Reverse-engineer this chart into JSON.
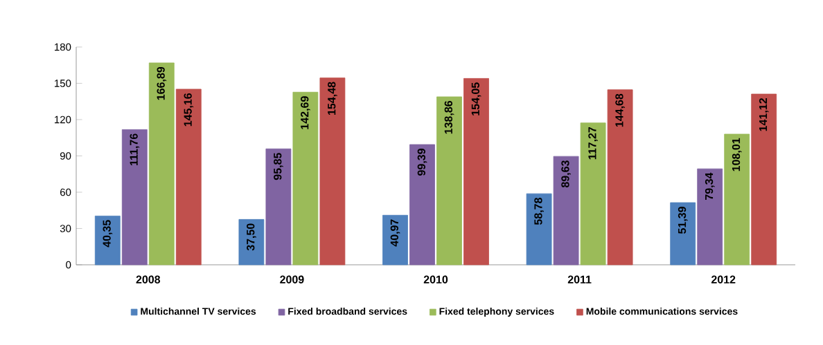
{
  "chart_data": {
    "type": "bar",
    "categories": [
      "2008",
      "2009",
      "2010",
      "2011",
      "2012"
    ],
    "series": [
      {
        "name": "Multichannel TV services",
        "color": "#4f81bd",
        "values": [
          40.35,
          37.5,
          40.97,
          58.78,
          51.39
        ],
        "value_labels": [
          "40,35",
          "37,50",
          "40,97",
          "58,78",
          "51,39"
        ]
      },
      {
        "name": "Fixed broadband services",
        "color": "#8064a2",
        "values": [
          111.76,
          95.85,
          99.39,
          89.63,
          79.34
        ],
        "value_labels": [
          "111,76",
          "95,85",
          "99,39",
          "89,63",
          "79,34"
        ]
      },
      {
        "name": "Fixed telephony services",
        "color": "#9bbb59",
        "values": [
          166.89,
          142.69,
          138.86,
          117.27,
          108.01
        ],
        "value_labels": [
          "166,89",
          "142,69",
          "138,86",
          "117,27",
          "108,01"
        ]
      },
      {
        "name": "Mobile communications services",
        "color": "#c0504d",
        "values": [
          145.16,
          154.48,
          154.05,
          144.68,
          141.12
        ],
        "value_labels": [
          "145,16",
          "154,48",
          "154,05",
          "144,68",
          "141,12"
        ]
      }
    ],
    "ylim": [
      0,
      180
    ],
    "yticks": [
      0,
      30,
      60,
      90,
      120,
      150,
      180
    ],
    "grid": false,
    "legend": "bottom"
  }
}
